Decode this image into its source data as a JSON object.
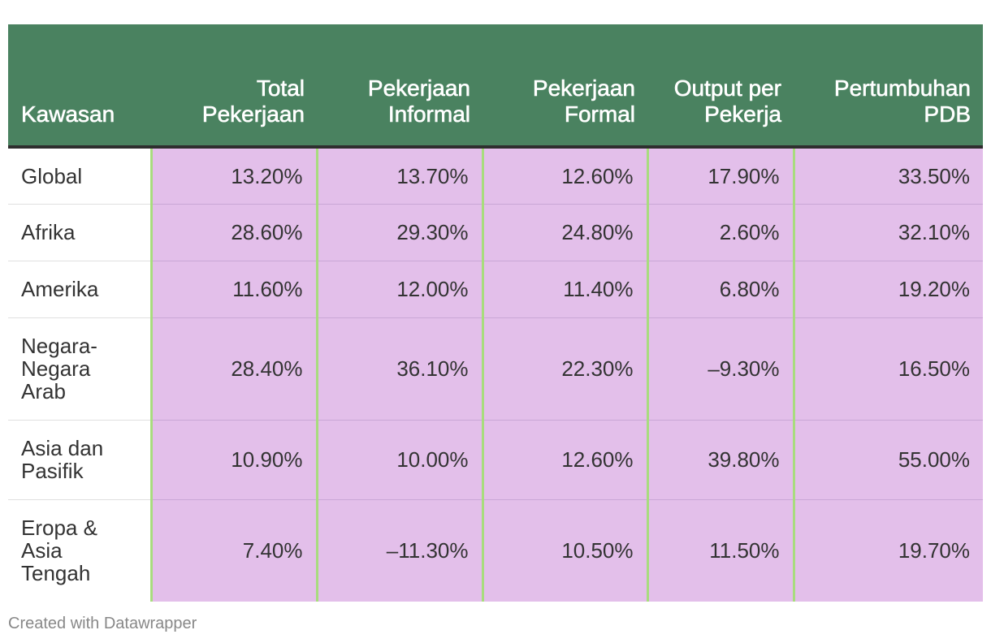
{
  "colors": {
    "header_bg": "#4a8260",
    "cell_bg": "#e3bfea",
    "column_divider": "#a8dc7e",
    "header_text": "#ffffff"
  },
  "chart_data": {
    "type": "table",
    "columns": [
      "Kawasan",
      "Total Pekerjaan",
      "Pekerjaan Informal",
      "Pekerjaan Formal",
      "Output per Pekerja",
      "Pertumbuhan PDB"
    ],
    "rows": [
      [
        "Global",
        "13.20%",
        "13.70%",
        "12.60%",
        "17.90%",
        "33.50%"
      ],
      [
        "Afrika",
        "28.60%",
        "29.30%",
        "24.80%",
        "2.60%",
        "32.10%"
      ],
      [
        "Amerika",
        "11.60%",
        "12.00%",
        "11.40%",
        "6.80%",
        "19.20%"
      ],
      [
        "Negara-Negara Arab",
        "28.40%",
        "36.10%",
        "22.30%",
        "–9.30%",
        "16.50%"
      ],
      [
        "Asia dan Pasifik",
        "10.90%",
        "10.00%",
        "12.60%",
        "39.80%",
        "55.00%"
      ],
      [
        "Eropa & Asia Tengah",
        "7.40%",
        "–11.30%",
        "10.50%",
        "11.50%",
        "19.70%"
      ]
    ]
  },
  "footer": {
    "credit": "Created with Datawrapper"
  }
}
